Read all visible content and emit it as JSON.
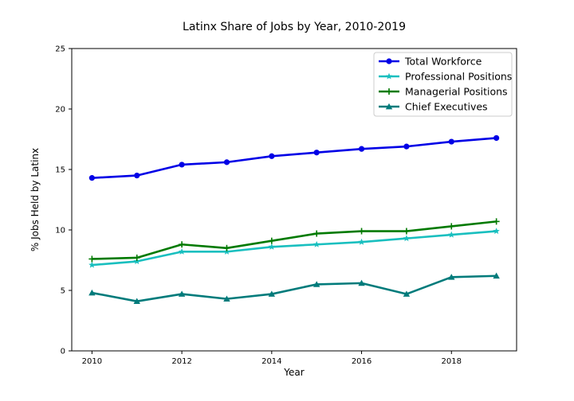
{
  "chart_data": {
    "type": "line",
    "title": "Latinx Share of Jobs by Year, 2010-2019",
    "xlabel": "Year",
    "ylabel": "% Jobs Held by Latinx",
    "xlim": [
      2009.55,
      2019.45
    ],
    "ylim": [
      0,
      25
    ],
    "x_ticks": [
      2010,
      2012,
      2014,
      2016,
      2018
    ],
    "y_ticks": [
      0,
      5,
      10,
      15,
      20,
      25
    ],
    "grid": false,
    "legend_position": "top-right",
    "x": [
      2010,
      2011,
      2012,
      2013,
      2014,
      2015,
      2016,
      2017,
      2018,
      2019
    ],
    "series": [
      {
        "name": "Total Workforce",
        "color": "#0000e6",
        "marker": "circle",
        "values": [
          14.3,
          14.5,
          15.4,
          15.6,
          16.1,
          16.4,
          16.7,
          16.9,
          17.3,
          17.6
        ]
      },
      {
        "name": "Professional Positions",
        "color": "#19bfbf",
        "marker": "star",
        "values": [
          7.1,
          7.4,
          8.2,
          8.2,
          8.6,
          8.8,
          9.0,
          9.3,
          9.6,
          9.9
        ]
      },
      {
        "name": "Managerial Positions",
        "color": "#007a00",
        "marker": "plus",
        "values": [
          7.6,
          7.7,
          8.8,
          8.5,
          9.1,
          9.7,
          9.9,
          9.9,
          10.3,
          10.7
        ]
      },
      {
        "name": "Chief Executives",
        "color": "#007b7b",
        "marker": "triangle",
        "values": [
          4.8,
          4.1,
          4.7,
          4.3,
          4.7,
          5.5,
          5.6,
          4.7,
          6.1,
          6.2
        ]
      }
    ]
  }
}
